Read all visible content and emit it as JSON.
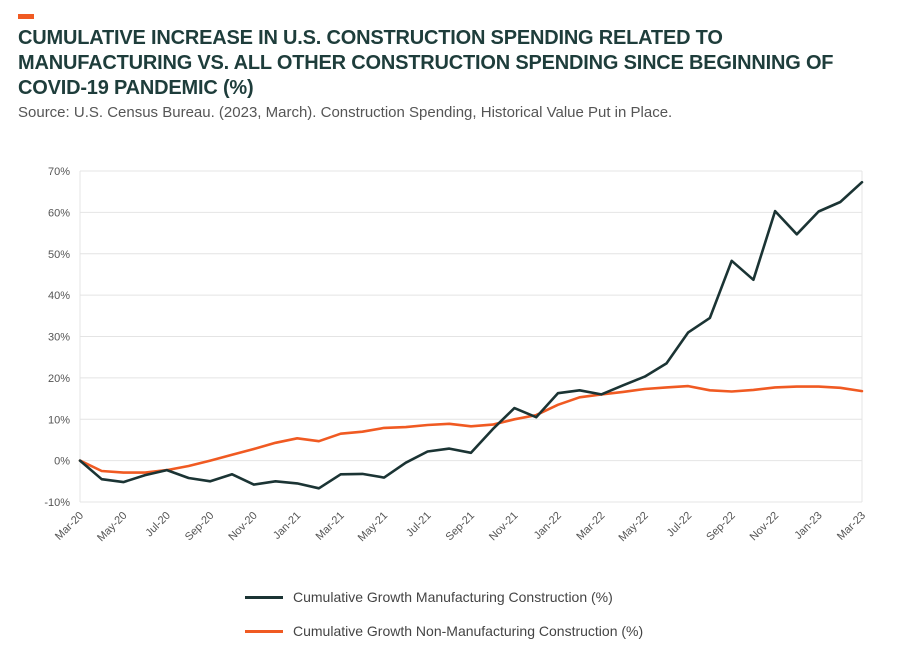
{
  "header": {
    "accent_color": "#f05a22",
    "title": "CUMULATIVE INCREASE IN U.S. CONSTRUCTION SPENDING RELATED TO MANUFACTURING VS. ALL OTHER CONSTRUCTION SPENDING SINCE BEGINNING OF COVID-19 PANDEMIC (%)",
    "source": "Source: U.S. Census Bureau. (2023, March). Construction Spending, Historical Value Put in Place."
  },
  "chart_data": {
    "type": "line",
    "title": "CUMULATIVE INCREASE IN U.S. CONSTRUCTION SPENDING RELATED TO MANUFACTURING VS. ALL OTHER CONSTRUCTION SPENDING SINCE BEGINNING OF COVID-19 PANDEMIC (%)",
    "xlabel": "",
    "ylabel": "",
    "ylim": [
      -10,
      70
    ],
    "yticks": [
      "-10%",
      "0%",
      "10%",
      "20%",
      "30%",
      "40%",
      "50%",
      "60%",
      "70%"
    ],
    "ytick_values": [
      -10,
      0,
      10,
      20,
      30,
      40,
      50,
      60,
      70
    ],
    "grid": true,
    "legend_position": "bottom",
    "x": [
      "Mar-20",
      "Apr-20",
      "May-20",
      "Jun-20",
      "Jul-20",
      "Aug-20",
      "Sep-20",
      "Oct-20",
      "Nov-20",
      "Dec-20",
      "Jan-21",
      "Feb-21",
      "Mar-21",
      "Apr-21",
      "May-21",
      "Jun-21",
      "Jul-21",
      "Aug-21",
      "Sep-21",
      "Oct-21",
      "Nov-21",
      "Dec-21",
      "Jan-22",
      "Feb-22",
      "Mar-22",
      "Apr-22",
      "May-22",
      "Jun-22",
      "Jul-22",
      "Aug-22",
      "Sep-22",
      "Oct-22",
      "Nov-22",
      "Dec-22",
      "Jan-23",
      "Feb-23",
      "Mar-23"
    ],
    "xtick_labels": [
      "Mar-20",
      "May-20",
      "Jul-20",
      "Sep-20",
      "Nov-20",
      "Jan-21",
      "Mar-21",
      "May-21",
      "Jul-21",
      "Sep-21",
      "Nov-21",
      "Jan-22",
      "Mar-22",
      "May-22",
      "Jul-22",
      "Sep-22",
      "Nov-22",
      "Jan-23",
      "Mar-23"
    ],
    "series": [
      {
        "name": "Cumulative Growth Manufacturing Construction (%)",
        "color": "#1b3434",
        "values": [
          0,
          -4.5,
          -5.2,
          -3.5,
          -2.3,
          -4.2,
          -5.0,
          -3.3,
          -5.8,
          -5.0,
          -5.5,
          -6.7,
          -3.3,
          -3.2,
          -4.1,
          -0.5,
          2.2,
          2.9,
          1.9,
          7.6,
          12.7,
          10.5,
          16.3,
          17.0,
          16.0,
          18.2,
          20.3,
          23.5,
          31.0,
          34.5,
          48.3,
          43.7,
          60.3,
          54.7,
          60.2,
          62.5,
          67.3
        ]
      },
      {
        "name": "Cumulative Growth Non-Manufacturing Construction (%)",
        "color": "#f05a22",
        "values": [
          0,
          -2.5,
          -2.9,
          -2.9,
          -2.3,
          -1.3,
          0.0,
          1.4,
          2.8,
          4.3,
          5.4,
          4.7,
          6.5,
          7.0,
          7.9,
          8.1,
          8.6,
          8.9,
          8.3,
          8.7,
          10.0,
          11.0,
          13.5,
          15.3,
          16.0,
          16.6,
          17.3,
          17.7,
          18.0,
          17.0,
          16.7,
          17.1,
          17.7,
          17.9,
          17.9,
          17.6,
          16.8
        ]
      }
    ]
  }
}
